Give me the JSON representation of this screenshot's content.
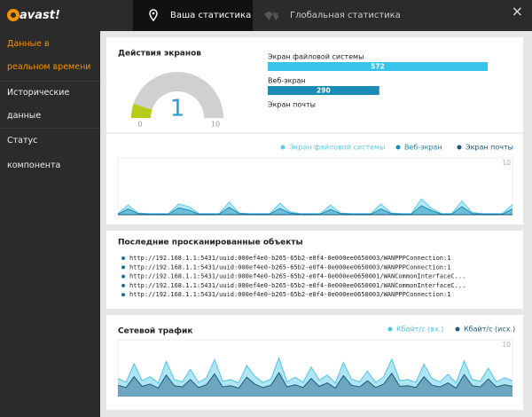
{
  "header": {
    "logo": "avast!",
    "tabs": [
      "Ваша статистика",
      "Глобальная статистика"
    ],
    "close": "×"
  },
  "sidebar": {
    "items": [
      "Данные в реальном времени",
      "Исторические данные",
      "Статус компонента"
    ]
  },
  "shields": {
    "title": "Действия экранов",
    "gauge": {
      "value": 1,
      "min": 0,
      "max": 10,
      "color": "#b5cc18"
    },
    "bars": [
      {
        "label": "Экран файловой системы",
        "value": 572,
        "color": "#37c3ea"
      },
      {
        "label": "Веб-экран",
        "value": 290,
        "color": "#1a8bb5"
      },
      {
        "label": "Экран почты",
        "value": 0,
        "color": "#16557d"
      }
    ]
  },
  "screen_chart": {
    "type": "area",
    "ylim": [
      0,
      10
    ],
    "yticks": [
      10
    ],
    "series": [
      {
        "name": "Экран файловой системы",
        "color": "#5ccbea",
        "values": [
          0.2,
          1.7,
          0.3,
          0.2,
          0.2,
          0.2,
          1.9,
          1.4,
          0.2,
          0.2,
          0.2,
          2.2,
          0.3,
          0.2,
          0.2,
          0.2,
          2.0,
          0.5,
          0.2,
          0.2,
          0.2,
          1.7,
          0.3,
          0.2,
          0.2,
          0.2,
          1.9,
          0.3,
          0.2,
          0.2,
          2.8,
          1.1,
          0.2,
          0.2,
          2.4,
          0.4,
          0.2,
          0.2,
          0.2,
          1.8
        ]
      },
      {
        "name": "Веб-экран",
        "color": "#1a8bb5",
        "values": [
          0.1,
          1.0,
          0.2,
          0.1,
          0.1,
          0.1,
          1.2,
          0.8,
          0.1,
          0.1,
          0.1,
          1.3,
          0.2,
          0.1,
          0.1,
          0.1,
          1.1,
          0.3,
          0.1,
          0.1,
          0.1,
          0.9,
          0.2,
          0.1,
          0.1,
          0.1,
          1.0,
          0.2,
          0.1,
          0.1,
          1.6,
          0.7,
          0.1,
          0.1,
          1.4,
          0.2,
          0.1,
          0.1,
          0.1,
          1.0
        ]
      },
      {
        "name": "Экран почты",
        "color": "#16557d",
        "values": [
          0,
          0,
          0,
          0,
          0,
          0,
          0,
          0,
          0,
          0,
          0,
          0,
          0,
          0,
          0,
          0,
          0,
          0,
          0,
          0,
          0,
          0,
          0,
          0,
          0,
          0,
          0,
          0,
          0,
          0,
          0,
          0,
          0,
          0,
          0,
          0,
          0,
          0,
          0,
          0
        ]
      }
    ]
  },
  "recent": {
    "title": "Последние просканированные объекты",
    "items": [
      "http://192.168.1.1:5431/uuid:000ef4e0-b265-65b2-e0f4-0e000ee0650003/WANPPPConnection:1",
      "http://192.168.1.1:5431/uuid:000ef4e0-b265-65b2-e0f4-0e000ee0650003/WANPPPConnection:1",
      "http://192.168.1.1:5431/uuid:000ef4e0-b265-65b2-e0f4-0e000ee0650001/WANCommonInterfaceC...",
      "http://192.168.1.1:5431/uuid:000ef4e0-b265-65b2-e0f4-0e000ee0650001/WANCommonInterfaceC...",
      "http://192.168.1.1:5431/uuid:000ef4e0-b265-65b2-e0f4-0e000ee0650003/WANPPPConnection:1"
    ]
  },
  "traffic": {
    "type": "area",
    "title": "Сетевой трафик",
    "ylim": [
      0,
      10
    ],
    "yticks": [
      10
    ],
    "series": [
      {
        "name": "Кбайт/с (вх.)",
        "color": "#4fc5e6",
        "values": [
          3.2,
          2.5,
          5.8,
          2.8,
          3.5,
          2.4,
          6.2,
          3.0,
          2.6,
          4.8,
          2.5,
          3.3,
          6.5,
          2.7,
          3.0,
          2.4,
          5.5,
          3.6,
          2.5,
          3.1,
          6.8,
          2.6,
          3.4,
          2.5,
          5.2,
          2.9,
          3.8,
          2.4,
          6.0,
          3.1,
          2.6,
          4.5,
          2.5,
          3.5,
          6.6,
          2.8,
          3.0,
          2.5,
          5.7,
          3.2,
          2.6,
          3.9,
          2.4,
          6.3,
          3.0,
          2.7,
          5.0,
          2.6,
          3.3,
          2.8
        ]
      },
      {
        "name": "Кбайт/с (исх.)",
        "color": "#1d5a7e",
        "values": [
          2.0,
          1.6,
          3.5,
          1.8,
          2.2,
          1.5,
          3.8,
          1.9,
          1.7,
          3.0,
          1.6,
          2.1,
          4.0,
          1.7,
          1.9,
          1.5,
          3.4,
          2.2,
          1.6,
          2.0,
          4.2,
          1.7,
          2.1,
          1.6,
          3.2,
          1.8,
          2.4,
          1.5,
          3.7,
          2.0,
          1.7,
          2.8,
          1.6,
          2.2,
          4.1,
          1.8,
          1.9,
          1.6,
          3.5,
          2.0,
          1.7,
          2.4,
          1.5,
          3.9,
          1.9,
          1.7,
          3.1,
          1.7,
          2.1,
          1.8
        ]
      }
    ]
  }
}
